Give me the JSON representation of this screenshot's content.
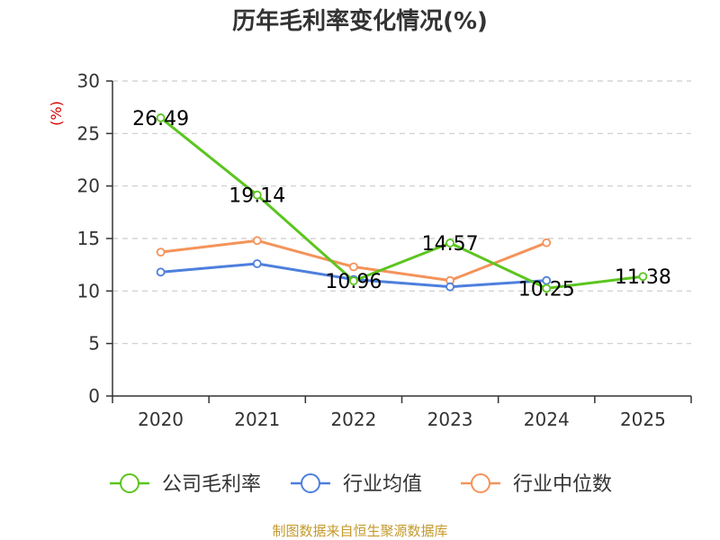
{
  "chart_data": {
    "type": "line",
    "title": "历年毛利率变化情况(%)",
    "unit_label": "(%)",
    "categories": [
      "2020",
      "2021",
      "2022",
      "2023",
      "2024",
      "2025"
    ],
    "ylim": [
      0,
      30
    ],
    "yticks": [
      0,
      5,
      10,
      15,
      20,
      25,
      30
    ],
    "grid": true,
    "legend_position": "bottom",
    "series": [
      {
        "name": "公司毛利率",
        "color": "#5bc51f",
        "values": [
          26.49,
          19.14,
          10.96,
          14.57,
          10.25,
          11.38
        ],
        "labels": [
          "26.49",
          "19.14",
          "10.96",
          "14.57",
          "10.25",
          "11.38"
        ]
      },
      {
        "name": "行业均值",
        "color": "#4e7fdd",
        "values": [
          11.8,
          12.6,
          11.1,
          10.4,
          11.0,
          null
        ]
      },
      {
        "name": "行业中位数",
        "color": "#f4935a",
        "values": [
          13.7,
          14.8,
          12.3,
          11.0,
          14.6,
          null
        ]
      }
    ],
    "source": "制图数据来自恒生聚源数据库"
  }
}
